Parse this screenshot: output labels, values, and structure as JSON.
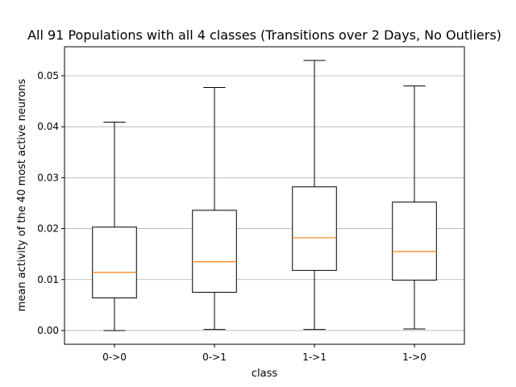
{
  "chart_data": {
    "type": "box",
    "title": "All 91 Populations with all 4 classes (Transitions over 2 Days, No Outliers)",
    "xlabel": "class",
    "ylabel": "mean activity of the 40 most active neurons",
    "ylim": [
      -0.0027,
      0.0557
    ],
    "yticks": [
      "0.00",
      "0.01",
      "0.02",
      "0.03",
      "0.04",
      "0.05"
    ],
    "grid": "y",
    "categories": [
      "0->0",
      "0->1",
      "1->1",
      "1->0"
    ],
    "boxes": [
      {
        "whisker_low": 0.0,
        "q1": 0.0064,
        "median": 0.0114,
        "q3": 0.0203,
        "whisker_high": 0.0409
      },
      {
        "whisker_low": 0.0002,
        "q1": 0.0075,
        "median": 0.0135,
        "q3": 0.0236,
        "whisker_high": 0.0477
      },
      {
        "whisker_low": 0.0002,
        "q1": 0.0118,
        "median": 0.0182,
        "q3": 0.0282,
        "whisker_high": 0.053
      },
      {
        "whisker_low": 0.0003,
        "q1": 0.0099,
        "median": 0.0155,
        "q3": 0.0252,
        "whisker_high": 0.048
      }
    ],
    "colors": {
      "box": "#000000",
      "median": "#ff7f0e",
      "grid": "#b0b0b0"
    }
  }
}
